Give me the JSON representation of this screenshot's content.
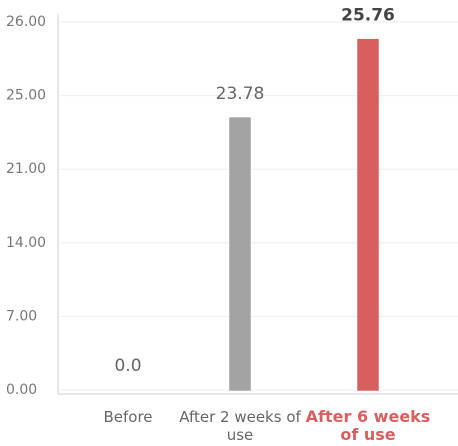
{
  "chart_data": {
    "type": "bar",
    "categories": [
      "Before",
      "After 2 weeks of use",
      "After 6 weeks of use"
    ],
    "values": [
      0,
      23.78,
      25.76
    ],
    "value_labels": [
      "0.0",
      "23.78",
      "25.76"
    ],
    "colors": [
      "#a3a3a3",
      "#a3a3a3",
      "#d95f5f"
    ],
    "ylim": [
      0,
      26
    ],
    "yticks": [
      {
        "value": 0,
        "label": "0.00"
      },
      {
        "value": 7,
        "label": "7.00"
      },
      {
        "value": 14,
        "label": "14.00"
      },
      {
        "value": 21,
        "label": "21.00"
      },
      {
        "value": 25,
        "label": "25.00"
      },
      {
        "value": 26,
        "label": "26.00"
      }
    ],
    "grid": true
  }
}
